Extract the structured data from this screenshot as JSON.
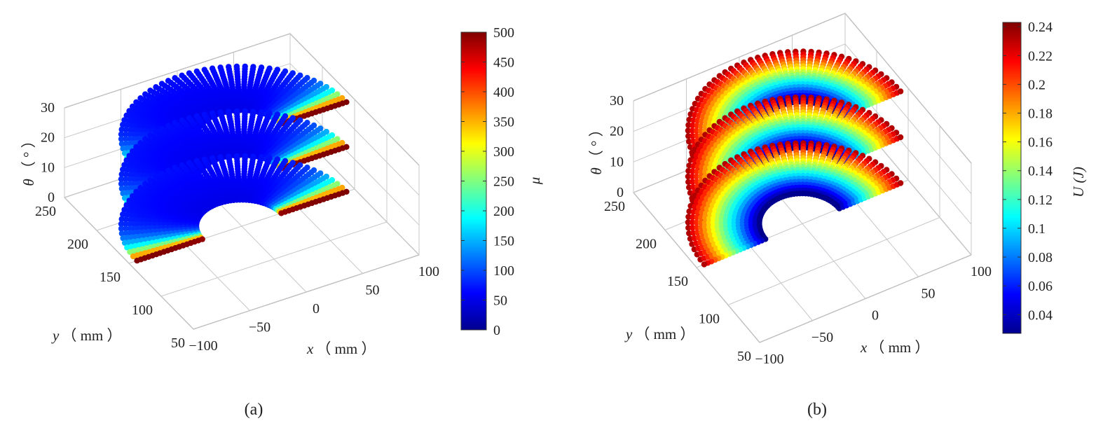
{
  "chart_data": [
    {
      "type": "scatter3d",
      "panel_label": "(a)",
      "colorbar_label": "μ",
      "colormap": "jet",
      "color_range": [
        0,
        500
      ],
      "colorbar_ticks": [
        "0",
        "50",
        "100",
        "150",
        "200",
        "250",
        "300",
        "350",
        "400",
        "450",
        "500"
      ],
      "xlabel": "x",
      "xlabel_unit": "（ mm ）",
      "ylabel": "y",
      "ylabel_unit": "（ mm ）",
      "zlabel": "θ",
      "zlabel_unit": "（ ° ）",
      "xlim": [
        -100,
        100
      ],
      "ylim": [
        50,
        250
      ],
      "zlim": [
        0,
        30
      ],
      "x_ticks": [
        "−100",
        "−50",
        "0",
        "50",
        "100"
      ],
      "y_ticks": [
        "50",
        "100",
        "150",
        "200",
        "250"
      ],
      "z_ticks": [
        "0",
        "10",
        "20",
        "30"
      ],
      "grid": true,
      "series": [
        {
          "z": 0,
          "inner_radius": 35,
          "outer_radius": 95,
          "center_y": 150,
          "low_value": 60,
          "high_value": 500
        },
        {
          "z": 15,
          "inner_radius": 35,
          "outer_radius": 95,
          "center_y": 150,
          "low_value": 60,
          "high_value": 500
        },
        {
          "z": 30,
          "inner_radius": 35,
          "outer_radius": 95,
          "center_y": 150,
          "low_value": 60,
          "high_value": 500
        }
      ]
    },
    {
      "type": "scatter3d",
      "panel_label": "(b)",
      "colorbar_label": "U (J)",
      "colormap": "jet",
      "color_range": [
        0.027,
        0.243
      ],
      "colorbar_ticks": [
        "0.04",
        "0.06",
        "0.08",
        "0.1",
        "0.12",
        "0.14",
        "0.16",
        "0.18",
        "0.2",
        "0.22",
        "0.24"
      ],
      "xlabel": "x",
      "xlabel_unit": "（ mm ）",
      "ylabel": "y",
      "ylabel_unit": "（ mm ）",
      "zlabel": "θ",
      "zlabel_unit": "（ ° ）",
      "xlim": [
        -100,
        100
      ],
      "ylim": [
        50,
        250
      ],
      "zlim": [
        0,
        30
      ],
      "x_ticks": [
        "−100",
        "−50",
        "0",
        "50",
        "100"
      ],
      "y_ticks": [
        "50",
        "100",
        "150",
        "200",
        "250"
      ],
      "z_ticks": [
        "0",
        "10",
        "20",
        "30"
      ],
      "grid": true,
      "series": [
        {
          "z": 0,
          "inner_radius": 35,
          "outer_radius": 95,
          "center_y": 150,
          "inner_value": 0.03,
          "outer_value": 0.24
        },
        {
          "z": 15,
          "inner_radius": 35,
          "outer_radius": 95,
          "center_y": 150,
          "inner_value": 0.03,
          "outer_value": 0.24
        },
        {
          "z": 30,
          "inner_radius": 35,
          "outer_radius": 95,
          "center_y": 150,
          "inner_value": 0.03,
          "outer_value": 0.24
        }
      ]
    }
  ]
}
